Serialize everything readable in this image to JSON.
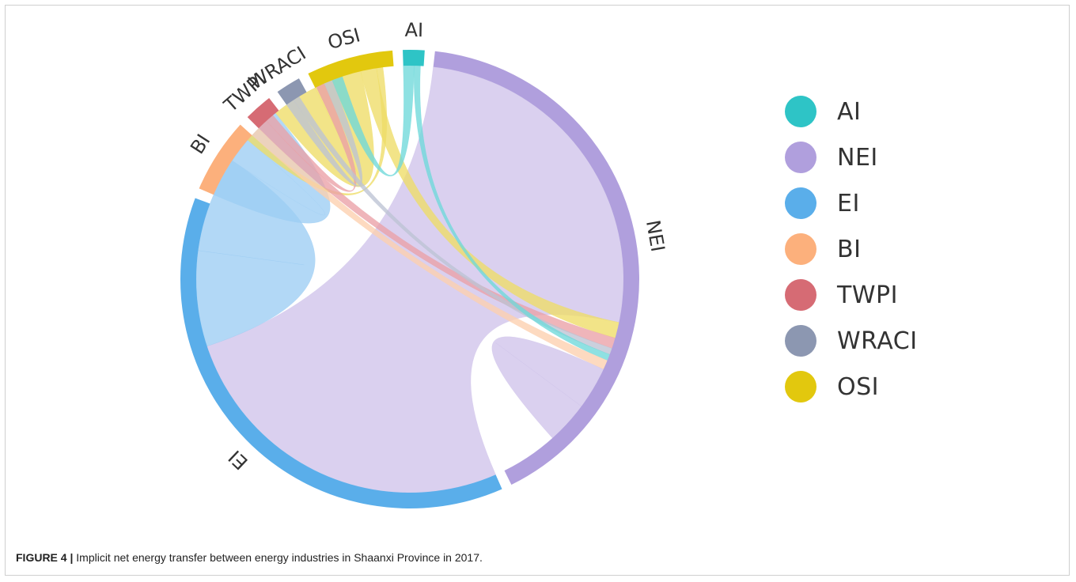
{
  "figure": {
    "number": "FIGURE 4 |",
    "caption": "Implicit net energy transfer between energy industries in Shaanxi Province in 2017."
  },
  "chart_data": {
    "type": "chord",
    "groups": [
      {
        "name": "NEI",
        "color": "#b09fdd",
        "ribbon_color": "#cfc3ea",
        "value": 51.0
      },
      {
        "name": "EI",
        "color": "#5aaeea",
        "ribbon_color": "#9ccdf3",
        "value": 46.5
      },
      {
        "name": "BI",
        "color": "#fcb07c",
        "ribbon_color": "#fdcfae",
        "value": 6.6
      },
      {
        "name": "TWPI",
        "color": "#d66b74",
        "ribbon_color": "#eaa0a6",
        "value": 2.5
      },
      {
        "name": "WRACI",
        "color": "#8c97b1",
        "ribbon_color": "#bcc3d4",
        "value": 2.2
      },
      {
        "name": "OSI",
        "color": "#e2c80e",
        "ribbon_color": "#eedd66",
        "value": 7.6
      },
      {
        "name": "AI",
        "color": "#2ec4c6",
        "ribbon_color": "#6ed9da",
        "value": 1.9
      }
    ],
    "flows": [
      {
        "from": "NEI",
        "to": "EI",
        "value": 33.0
      },
      {
        "from": "EI",
        "to": "EI",
        "value": 9.0
      },
      {
        "from": "EI",
        "to": "BI",
        "value": 6.0
      },
      {
        "from": "OSI",
        "to": "EI",
        "value": 4.5
      },
      {
        "from": "OSI",
        "to": "NEI",
        "value": 1.5
      },
      {
        "from": "OSI",
        "to": "BI",
        "value": 0.6
      },
      {
        "from": "TWPI",
        "to": "NEI",
        "value": 1.0
      },
      {
        "from": "TWPI",
        "to": "EI",
        "value": 0.8
      },
      {
        "from": "WRACI",
        "to": "EI",
        "value": 0.8
      },
      {
        "from": "WRACI",
        "to": "NEI",
        "value": 0.6
      },
      {
        "from": "AI",
        "to": "EI",
        "value": 1.0
      },
      {
        "from": "AI",
        "to": "NEI",
        "value": 0.6
      },
      {
        "from": "BI",
        "to": "NEI",
        "value": 0.9
      },
      {
        "from": "NEI",
        "to": "NEI",
        "value": 4.0
      }
    ],
    "legend": [
      "AI",
      "NEI",
      "EI",
      "BI",
      "TWPI",
      "WRACI",
      "OSI"
    ],
    "legend_position": "right"
  }
}
